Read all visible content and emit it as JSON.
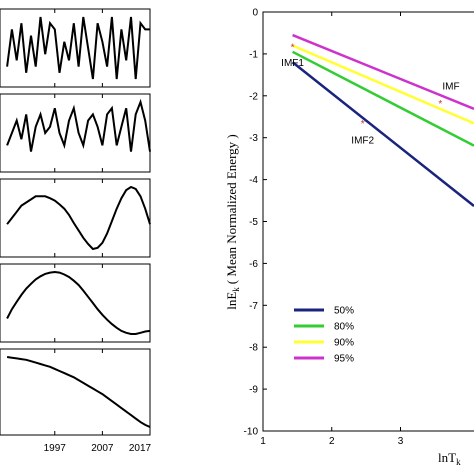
{
  "chart_data": [
    {
      "type": "line",
      "panels": [
        {
          "x": [
            1987,
            1988,
            1989,
            1990,
            1991,
            1992,
            1993,
            1994,
            1995,
            1996,
            1997,
            1998,
            1999,
            2000,
            2001,
            2002,
            2003,
            2004,
            2005,
            2006,
            2007,
            2008,
            2009,
            2010,
            2011,
            2012,
            2013,
            2014,
            2015,
            2016,
            2017
          ],
          "y": [
            0.2,
            0.8,
            0.3,
            0.9,
            0.1,
            0.7,
            0.2,
            1.0,
            0.4,
            0.9,
            0.8,
            0.1,
            0.6,
            0.3,
            0.9,
            0.2,
            1.0,
            0.5,
            0.0,
            0.9,
            0.6,
            0.2,
            1.0,
            0.0,
            0.8,
            0.3,
            1.0,
            0.0,
            0.9,
            0.8,
            0.8
          ]
        },
        {
          "x": [
            1987,
            1988,
            1989,
            1990,
            1991,
            1992,
            1993,
            1994,
            1995,
            1996,
            1997,
            1998,
            1999,
            2000,
            2001,
            2002,
            2003,
            2004,
            2005,
            2006,
            2007,
            2008,
            2009,
            2010,
            2011,
            2012,
            2013,
            2014,
            2015,
            2016,
            2017
          ],
          "y": [
            0.3,
            0.5,
            0.7,
            0.4,
            0.8,
            0.2,
            0.6,
            0.8,
            0.5,
            0.6,
            0.9,
            0.5,
            0.3,
            0.7,
            0.9,
            0.5,
            0.3,
            0.7,
            0.8,
            0.6,
            0.3,
            0.8,
            0.9,
            0.3,
            0.6,
            0.9,
            0.2,
            0.8,
            1.0,
            0.7,
            0.2
          ]
        },
        {
          "x": [
            1987,
            1988,
            1989,
            1990,
            1991,
            1992,
            1993,
            1994,
            1995,
            1996,
            1997,
            1998,
            1999,
            2000,
            2001,
            2002,
            2003,
            2004,
            2005,
            2006,
            2007,
            2008,
            2009,
            2010,
            2011,
            2012,
            2013,
            2014,
            2015,
            2016,
            2017
          ],
          "y": [
            0.4,
            0.5,
            0.6,
            0.7,
            0.75,
            0.8,
            0.85,
            0.85,
            0.85,
            0.82,
            0.78,
            0.72,
            0.65,
            0.55,
            0.42,
            0.3,
            0.18,
            0.08,
            0.0,
            0.02,
            0.1,
            0.25,
            0.45,
            0.65,
            0.82,
            0.95,
            1.0,
            0.97,
            0.85,
            0.65,
            0.4
          ]
        },
        {
          "x": [
            1987,
            1988,
            1989,
            1990,
            1991,
            1992,
            1993,
            1994,
            1995,
            1996,
            1997,
            1998,
            1999,
            2000,
            2001,
            2002,
            2003,
            2004,
            2005,
            2006,
            2007,
            2008,
            2009,
            2010,
            2011,
            2012,
            2013,
            2014,
            2015,
            2016,
            2017
          ],
          "y": [
            0.25,
            0.4,
            0.52,
            0.63,
            0.73,
            0.81,
            0.88,
            0.93,
            0.97,
            0.99,
            1.0,
            0.99,
            0.96,
            0.92,
            0.86,
            0.79,
            0.7,
            0.6,
            0.5,
            0.4,
            0.31,
            0.23,
            0.16,
            0.1,
            0.05,
            0.02,
            0.0,
            0.0,
            0.02,
            0.04,
            0.05
          ]
        },
        {
          "x": [
            1987,
            1988,
            1989,
            1990,
            1991,
            1992,
            1993,
            1994,
            1995,
            1996,
            1997,
            1998,
            1999,
            2000,
            2001,
            2002,
            2003,
            2004,
            2005,
            2006,
            2007,
            2008,
            2009,
            2010,
            2011,
            2012,
            2013,
            2014,
            2015,
            2016,
            2017
          ],
          "y": [
            1.0,
            0.99,
            0.98,
            0.97,
            0.96,
            0.94,
            0.92,
            0.9,
            0.88,
            0.86,
            0.83,
            0.8,
            0.77,
            0.74,
            0.71,
            0.67,
            0.63,
            0.59,
            0.55,
            0.51,
            0.47,
            0.42,
            0.37,
            0.32,
            0.27,
            0.22,
            0.17,
            0.12,
            0.07,
            0.03,
            0.0
          ]
        }
      ],
      "x_ticks": [
        "1997",
        "2007",
        "2017"
      ],
      "x_tick_values": [
        1997,
        2007,
        2017
      ],
      "xlim": [
        1985.5,
        2017
      ],
      "line_color": "#000000"
    },
    {
      "type": "scatter",
      "ylabel": "lnE",
      "ylabel_sub": "k",
      "ylabel_rest": "( Mean Normalized Energy )",
      "xlabel": "lnT",
      "xlabel_sub": "k",
      "xlim": [
        1,
        4.2
      ],
      "ylim": [
        -10,
        0
      ],
      "x_ticks": [
        1,
        2,
        3
      ],
      "y_ticks": [
        0,
        -1,
        -2,
        -3,
        -4,
        -5,
        -6,
        -7,
        -8,
        -9,
        -10
      ],
      "points": [
        {
          "name": "IMF1",
          "x": 1.43,
          "y": -0.84
        },
        {
          "name": "IMF2",
          "x": 2.45,
          "y": -2.66
        },
        {
          "name": "IMF",
          "x": 3.58,
          "y": -2.18
        }
      ],
      "point_color": "#cc3333",
      "series": [
        {
          "name": "50%",
          "color": "#1a237e",
          "x": [
            1.43,
            4.2
          ],
          "y": [
            -1.2,
            -4.8
          ]
        },
        {
          "name": "80%",
          "color": "#33cc33",
          "x": [
            1.43,
            4.2
          ],
          "y": [
            -0.95,
            -3.3
          ]
        },
        {
          "name": "90%",
          "color": "#ffff33",
          "x": [
            1.43,
            4.2
          ],
          "y": [
            -0.8,
            -2.75
          ]
        },
        {
          "name": "95%",
          "color": "#cc33cc",
          "x": [
            1.43,
            4.2
          ],
          "y": [
            -0.55,
            -2.4
          ]
        }
      ],
      "legend": {
        "placement": "lower-left",
        "items": [
          "50%",
          "80%",
          "90%",
          "95%"
        ]
      }
    }
  ]
}
